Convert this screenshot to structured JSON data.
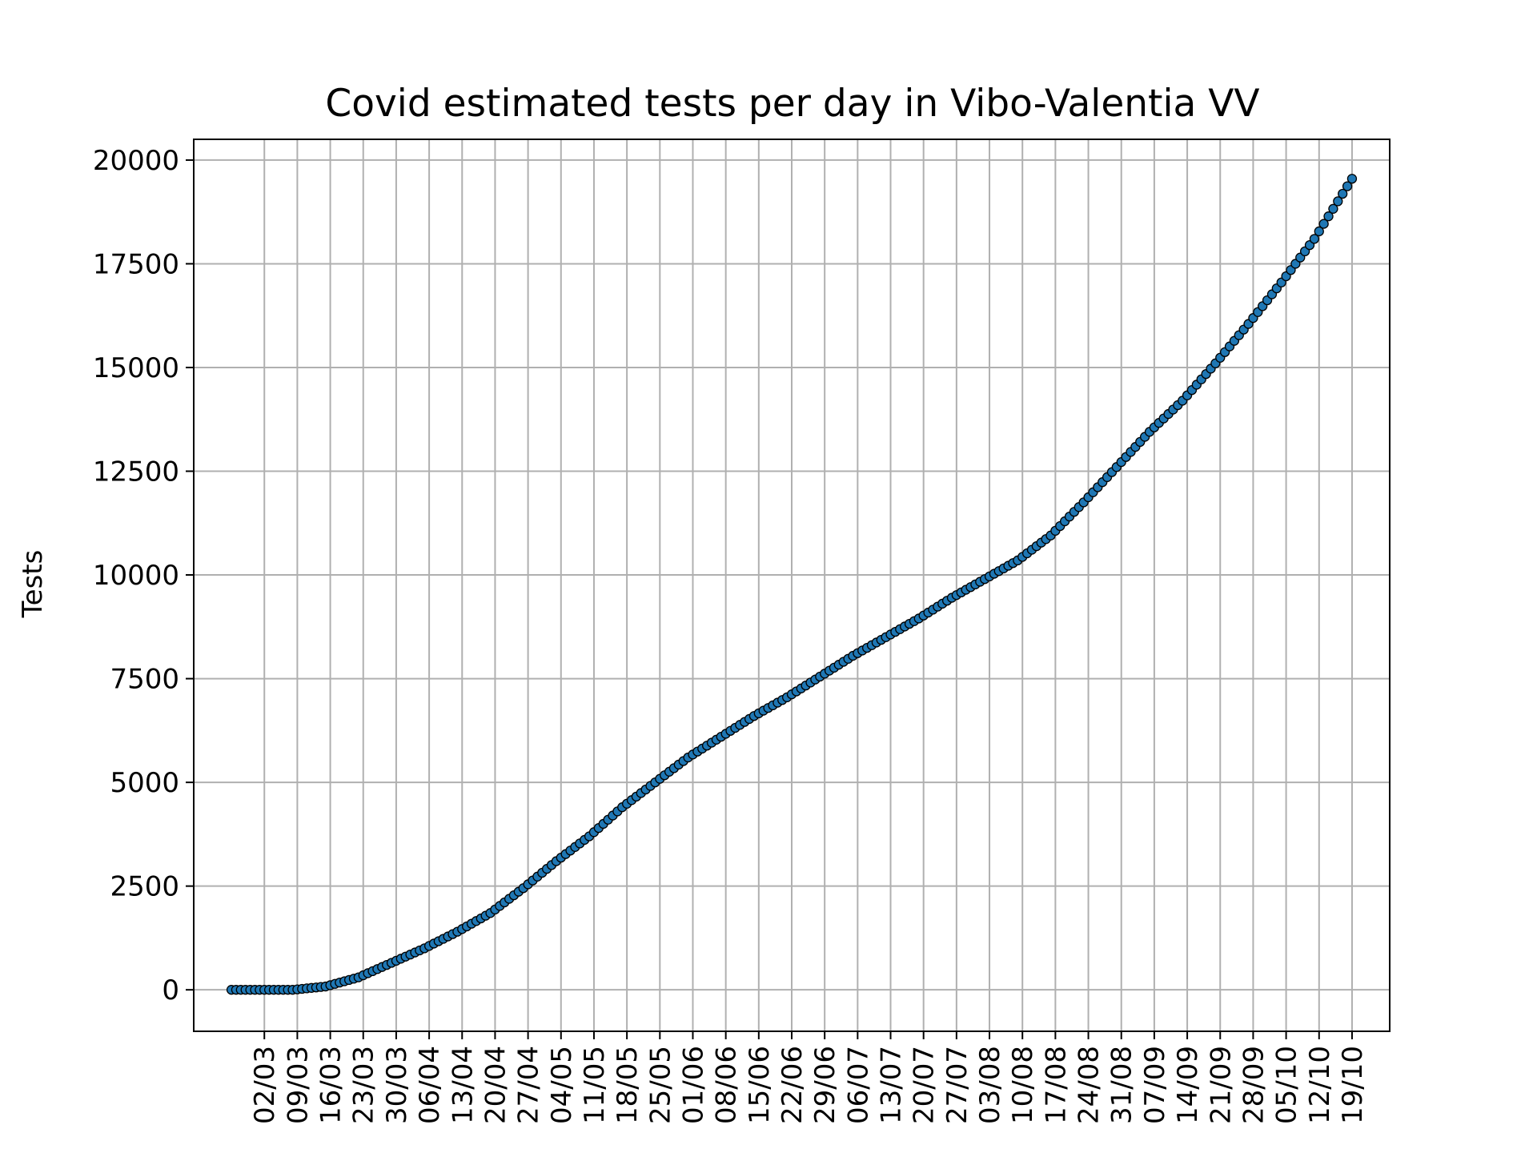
{
  "chart_data": {
    "type": "scatter",
    "title": "Covid estimated tests per day in Vibo-Valentia VV",
    "ylabel": "Tests",
    "xlabel": "",
    "grid": true,
    "x_ticks": [
      "02/03",
      "09/03",
      "16/03",
      "23/03",
      "30/03",
      "06/04",
      "13/04",
      "20/04",
      "27/04",
      "04/05",
      "11/05",
      "18/05",
      "25/05",
      "01/06",
      "08/06",
      "15/06",
      "22/06",
      "29/06",
      "06/07",
      "13/07",
      "20/07",
      "27/07",
      "03/08",
      "10/08",
      "17/08",
      "24/08",
      "31/08",
      "07/09",
      "14/09",
      "21/09",
      "28/09",
      "05/10",
      "12/10",
      "19/10"
    ],
    "y_ticks": [
      0,
      2500,
      5000,
      7500,
      10000,
      12500,
      15000,
      17500,
      20000
    ],
    "ylim": [
      -1000,
      20500
    ],
    "xlim": [
      "2020-02-16",
      "2020-10-27"
    ],
    "series_color": "#1f77b4",
    "series": [
      {
        "points": [
          [
            "2020-02-24",
            0
          ],
          [
            "2020-03-01",
            0
          ],
          [
            "2020-03-08",
            0
          ],
          [
            "2020-03-15",
            80
          ],
          [
            "2020-03-22",
            300
          ],
          [
            "2020-03-29",
            650
          ],
          [
            "2020-04-05",
            1000
          ],
          [
            "2020-04-12",
            1400
          ],
          [
            "2020-04-19",
            1850
          ],
          [
            "2020-04-26",
            2450
          ],
          [
            "2020-05-03",
            3100
          ],
          [
            "2020-05-10",
            3700
          ],
          [
            "2020-05-17",
            4400
          ],
          [
            "2020-05-24",
            5000
          ],
          [
            "2020-05-31",
            5600
          ],
          [
            "2020-06-07",
            6100
          ],
          [
            "2020-06-14",
            6600
          ],
          [
            "2020-06-21",
            7050
          ],
          [
            "2020-06-28",
            7550
          ],
          [
            "2020-07-05",
            8050
          ],
          [
            "2020-07-12",
            8500
          ],
          [
            "2020-07-19",
            8950
          ],
          [
            "2020-07-26",
            9450
          ],
          [
            "2020-08-02",
            9900
          ],
          [
            "2020-08-09",
            10350
          ],
          [
            "2020-08-16",
            10950
          ],
          [
            "2020-08-23",
            11750
          ],
          [
            "2020-08-30",
            12600
          ],
          [
            "2020-09-06",
            13450
          ],
          [
            "2020-09-13",
            14200
          ],
          [
            "2020-09-20",
            15100
          ],
          [
            "2020-09-27",
            16050
          ],
          [
            "2020-10-04",
            17050
          ],
          [
            "2020-10-11",
            18100
          ],
          [
            "2020-10-19",
            19550
          ]
        ]
      }
    ]
  }
}
